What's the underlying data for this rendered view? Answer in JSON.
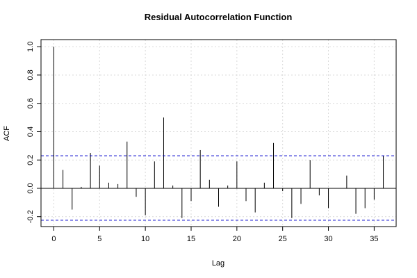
{
  "chart_data": {
    "type": "bar",
    "title": "Residual Autocorrelation Function",
    "xlabel": "Lag",
    "ylabel": "ACF",
    "xlim": [
      -1.4,
      37.4
    ],
    "ylim": [
      -0.27,
      1.05
    ],
    "x_ticks": [
      0,
      5,
      10,
      15,
      20,
      25,
      30,
      35
    ],
    "x_tick_labels": [
      "0",
      "5",
      "10",
      "15",
      "20",
      "25",
      "30",
      "35"
    ],
    "y_ticks": [
      -0.2,
      0.0,
      0.2,
      0.4,
      0.6,
      0.8,
      1.0
    ],
    "y_tick_labels": [
      "-0.2",
      "0.0",
      "0.2",
      "0.4",
      "0.6",
      "0.8",
      "1.0"
    ],
    "grid": true,
    "confidence_bounds": [
      0.23,
      -0.225
    ],
    "lags": [
      0,
      1,
      2,
      3,
      4,
      5,
      6,
      7,
      8,
      9,
      10,
      11,
      12,
      13,
      14,
      15,
      16,
      17,
      18,
      19,
      20,
      21,
      22,
      23,
      24,
      25,
      26,
      27,
      28,
      29,
      30,
      31,
      32,
      33,
      34,
      35,
      36
    ],
    "acf": [
      1.0,
      0.13,
      -0.15,
      0.01,
      0.25,
      0.16,
      0.04,
      0.03,
      0.33,
      -0.06,
      -0.19,
      0.19,
      0.5,
      0.02,
      -0.21,
      -0.09,
      0.27,
      0.06,
      -0.13,
      0.02,
      0.19,
      -0.09,
      -0.17,
      0.04,
      0.32,
      -0.02,
      -0.21,
      -0.11,
      0.2,
      -0.05,
      -0.14,
      0.0,
      0.09,
      -0.18,
      -0.14,
      -0.08,
      0.23
    ],
    "colors": {
      "bars": "#000000",
      "bounds": "#0000cc",
      "grid": "#d9d9d9",
      "axis": "#000000"
    }
  }
}
